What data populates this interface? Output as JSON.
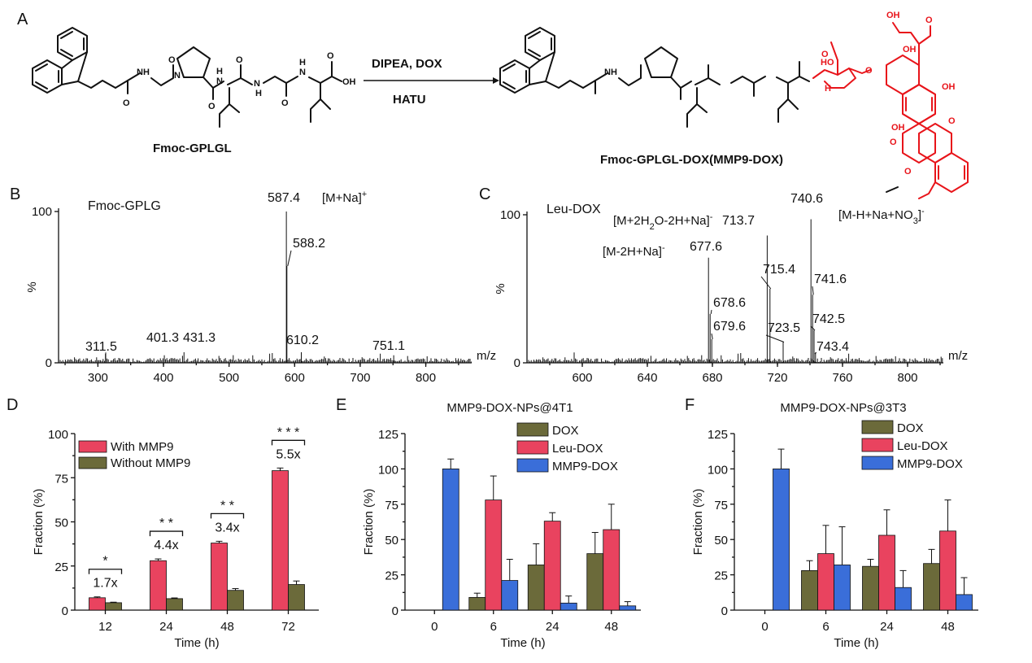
{
  "panel_letters": [
    "A",
    "B",
    "C",
    "D",
    "E",
    "F"
  ],
  "scheme": {
    "reactant": "Fmoc-GPLGL",
    "product": "Fmoc-GPLGL-DOX(MMP9-DOX)",
    "reagent_top": "DIPEA, DOX",
    "reagent_bottom": "HATU",
    "atom_labels": {
      "nh": "N\nH",
      "oh": "OH",
      "o": "O",
      "ho": "HO",
      "n": "N"
    }
  },
  "colors": {
    "red_bar": "#e9435f",
    "olive_bar": "#6b6a3a",
    "blue_bar": "#3a6ed9",
    "dox_red": "#e8141a"
  },
  "chart_data": [
    {
      "panel": "B",
      "type": "line",
      "title": "Fmoc-GPLG",
      "xlabel": "m/z",
      "ylabel": "%",
      "xlim": [
        240,
        870
      ],
      "ylim": [
        0,
        100
      ],
      "xticks": [
        300,
        400,
        500,
        600,
        700,
        800
      ],
      "yticks": [
        0,
        100
      ],
      "ion_label": "[M+Na]",
      "ion_sup": "+",
      "peaks": [
        {
          "x": 311.5,
          "y": 6,
          "label": "311.5"
        },
        {
          "x": 401.3,
          "y": 5,
          "label": "401.3"
        },
        {
          "x": 431.3,
          "y": 7,
          "label": "431.3"
        },
        {
          "x": 587.4,
          "y": 100,
          "label": "587.4"
        },
        {
          "x": 588.2,
          "y": 64,
          "label": "588.2"
        },
        {
          "x": 610.2,
          "y": 7,
          "label": "610.2"
        },
        {
          "x": 751.1,
          "y": 5,
          "label": "751.1"
        }
      ]
    },
    {
      "panel": "C",
      "type": "line",
      "title": "Leu-DOX",
      "xlabel": "m/z",
      "ylabel": "%",
      "xlim": [
        566,
        822
      ],
      "ylim": [
        0,
        100
      ],
      "xticks": [
        600,
        640,
        680,
        720,
        760,
        800
      ],
      "yticks": [
        0,
        100
      ],
      "ion_labels": [
        {
          "text": "[M+2H",
          "sub": "2",
          "mid": "O-2H+Na]",
          "sup": "-"
        },
        {
          "text": "[M-2H+Na]",
          "sup": "-"
        },
        {
          "text": "[M-H+Na+NO",
          "sub": "3",
          "mid": "]",
          "sup": "-"
        }
      ],
      "peaks": [
        {
          "x": 677.6,
          "y": 71,
          "label": "677.6"
        },
        {
          "x": 678.6,
          "y": 33,
          "label": "678.6"
        },
        {
          "x": 679.6,
          "y": 16,
          "label": "679.6"
        },
        {
          "x": 713.7,
          "y": 86,
          "label": "713.7"
        },
        {
          "x": 715.4,
          "y": 50,
          "label": "715.4"
        },
        {
          "x": 723.5,
          "y": 14,
          "label": "723.5"
        },
        {
          "x": 740.6,
          "y": 97,
          "label": "740.6"
        },
        {
          "x": 741.6,
          "y": 46,
          "label": "741.6"
        },
        {
          "x": 742.5,
          "y": 22,
          "label": "742.5"
        },
        {
          "x": 743.4,
          "y": 7,
          "label": "743.4"
        }
      ]
    },
    {
      "panel": "D",
      "type": "bar",
      "xlabel": "Time (h)",
      "ylabel": "Fraction (%)",
      "ylim": [
        0,
        100
      ],
      "yticks": [
        0,
        25,
        50,
        75,
        100
      ],
      "categories": [
        "12",
        "24",
        "48",
        "72"
      ],
      "series": [
        {
          "name": "With MMP9",
          "values": [
            7,
            28,
            38,
            79
          ],
          "errors": [
            0.5,
            1,
            1,
            1.5
          ]
        },
        {
          "name": "Without MMP9",
          "values": [
            4.2,
            6.5,
            11.2,
            14.5
          ],
          "errors": [
            0.3,
            0.4,
            1,
            2
          ]
        }
      ],
      "fold_labels": [
        "1.7x",
        "4.4x",
        "3.4x",
        "5.5x"
      ],
      "significance": [
        "*",
        "* *",
        "* *",
        "* * *"
      ]
    },
    {
      "panel": "E",
      "type": "bar",
      "title": "MMP9-DOX-NPs@4T1",
      "xlabel": "Time (h)",
      "ylabel": "Fraction (%)",
      "ylim": [
        0,
        125
      ],
      "yticks": [
        0,
        25,
        50,
        75,
        100,
        125
      ],
      "categories": [
        "0",
        "6",
        "24",
        "48"
      ],
      "series": [
        {
          "name": "DOX",
          "values": [
            0,
            9,
            32,
            40
          ],
          "errors": [
            0,
            3,
            15,
            15
          ]
        },
        {
          "name": "Leu-DOX",
          "values": [
            0,
            78,
            63,
            57
          ],
          "errors": [
            0,
            17,
            6,
            18
          ]
        },
        {
          "name": "MMP9-DOX",
          "values": [
            100,
            21,
            5,
            3
          ],
          "errors": [
            7,
            15,
            5,
            3
          ]
        }
      ]
    },
    {
      "panel": "F",
      "type": "bar",
      "title": "MMP9-DOX-NPs@3T3",
      "xlabel": "Time (h)",
      "ylabel": "Fraction (%)",
      "ylim": [
        0,
        125
      ],
      "yticks": [
        0,
        25,
        50,
        75,
        100,
        125
      ],
      "categories": [
        "0",
        "6",
        "24",
        "48"
      ],
      "series": [
        {
          "name": "DOX",
          "values": [
            0,
            28,
            31,
            33
          ],
          "errors": [
            0,
            7,
            5,
            10
          ]
        },
        {
          "name": "Leu-DOX",
          "values": [
            0,
            40,
            53,
            56
          ],
          "errors": [
            0,
            20,
            18,
            22
          ]
        },
        {
          "name": "MMP9-DOX",
          "values": [
            100,
            32,
            16,
            11
          ],
          "errors": [
            14,
            27,
            12,
            12
          ]
        }
      ]
    }
  ]
}
